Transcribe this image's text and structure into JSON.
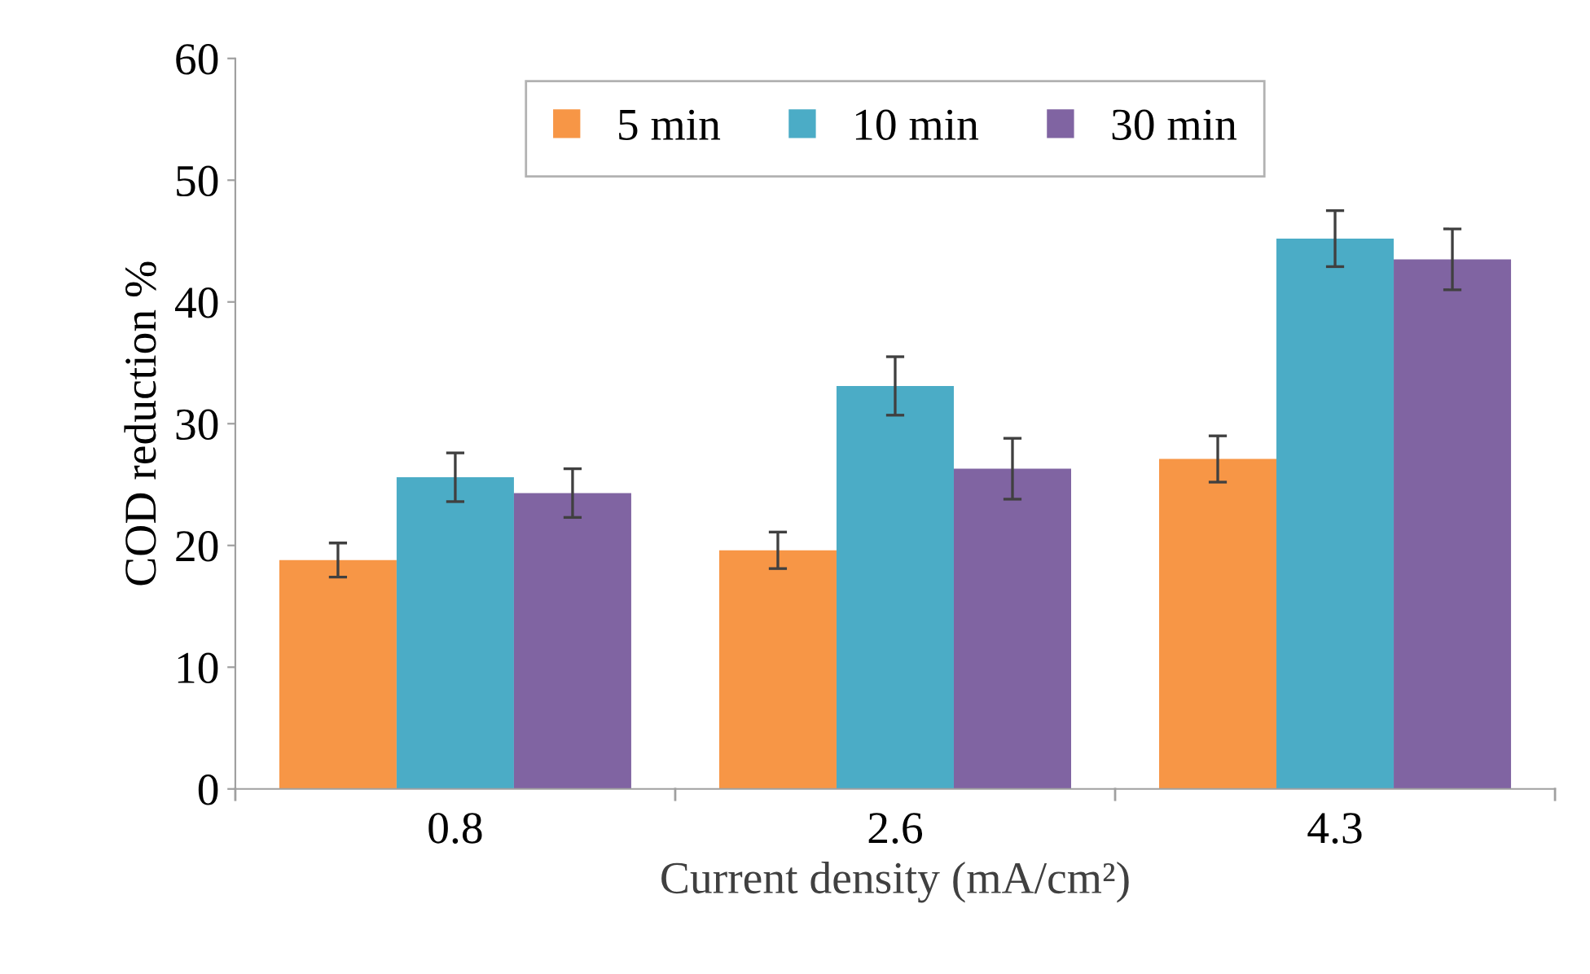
{
  "chart_data": {
    "type": "bar",
    "xlabel": "Current density (mA/cm²)",
    "ylabel": "COD reduction %",
    "categories": [
      "0.8",
      "2.6",
      "4.3"
    ],
    "series": [
      {
        "name": "5 min",
        "color": "#f79646",
        "values": [
          18.8,
          19.6,
          27.1
        ],
        "errors": [
          1.4,
          1.5,
          1.9
        ]
      },
      {
        "name": "10 min",
        "color": "#4bacc6",
        "values": [
          25.6,
          33.1,
          45.2
        ],
        "errors": [
          2.0,
          2.4,
          2.3
        ]
      },
      {
        "name": "30 min",
        "color": "#8064a2",
        "values": [
          24.3,
          26.3,
          43.5
        ],
        "errors": [
          2.0,
          2.5,
          2.5
        ]
      }
    ],
    "ylim": [
      0,
      60
    ],
    "yticks": [
      0,
      10,
      20,
      30,
      40,
      50,
      60
    ],
    "grid": false,
    "legend": "top"
  }
}
